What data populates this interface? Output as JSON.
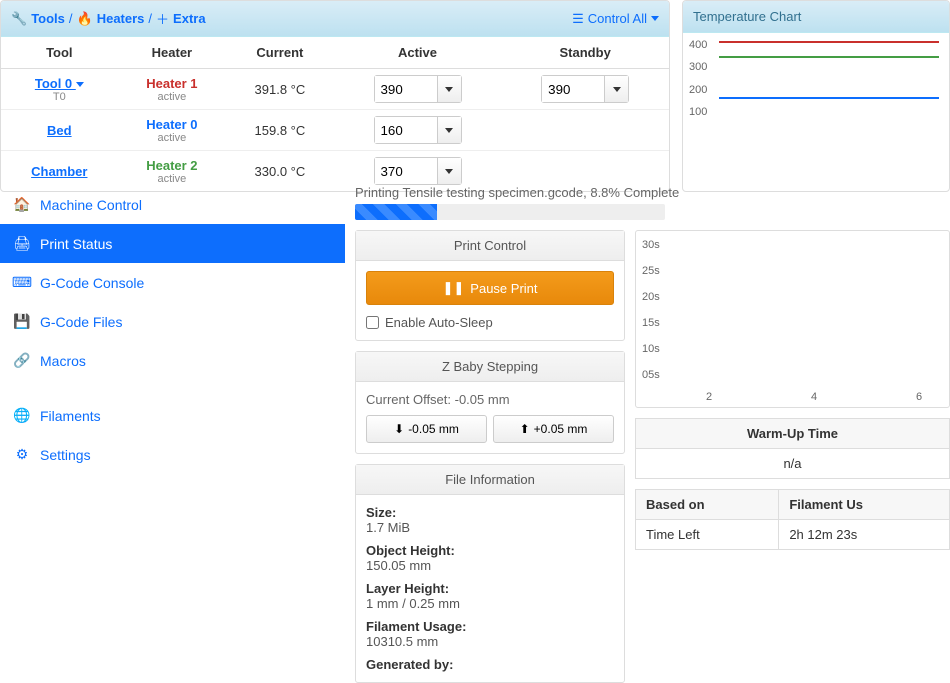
{
  "tools": {
    "crumbs": {
      "tools": "Tools",
      "heaters": "Heaters",
      "extra": "Extra"
    },
    "control_all": "Control All",
    "columns": {
      "tool": "Tool",
      "heater": "Heater",
      "current": "Current",
      "active": "Active",
      "standby": "Standby"
    },
    "rows": [
      {
        "tool": "Tool 0",
        "tool_sub": "T0",
        "heater": "Heater 1",
        "heater_class": "h-red",
        "status": "active",
        "current": "391.8 °C",
        "active": "390",
        "standby": "390"
      },
      {
        "tool": "Bed",
        "tool_sub": "",
        "heater": "Heater 0",
        "heater_class": "h-blue",
        "status": "active",
        "current": "159.8 °C",
        "active": "160",
        "standby": ""
      },
      {
        "tool": "Chamber",
        "tool_sub": "",
        "heater": "Heater 2",
        "heater_class": "h-green",
        "status": "active",
        "current": "330.0 °C",
        "active": "370",
        "standby": ""
      }
    ]
  },
  "temp_chart": {
    "title": "Temperature Chart",
    "y_ticks": [
      "400",
      "300",
      "200",
      "100"
    ],
    "lines": [
      {
        "color": "#c9302c",
        "y": 390
      },
      {
        "color": "#449d44",
        "y": 330
      },
      {
        "color": "#0d6efd",
        "y": 160
      }
    ],
    "y_max": 400
  },
  "sidebar": {
    "items": [
      {
        "icon": "home",
        "label": "Machine Control"
      },
      {
        "icon": "print",
        "label": "Print Status"
      },
      {
        "icon": "console",
        "label": "G-Code Console"
      },
      {
        "icon": "drive",
        "label": "G-Code Files"
      },
      {
        "icon": "link",
        "label": "Macros"
      },
      {
        "icon": "globe",
        "label": "Filaments"
      },
      {
        "icon": "gear",
        "label": "Settings"
      }
    ],
    "active_index": 1
  },
  "progress": {
    "label": "Printing Tensile testing specimen.gcode, 8.8% Complete",
    "percent": 8.8
  },
  "print_control": {
    "title": "Print Control",
    "pause": "Pause Print",
    "auto_sleep": "Enable Auto-Sleep"
  },
  "baby": {
    "title": "Z Baby Stepping",
    "offset_label": "Current Offset: -0.05 mm",
    "down": "-0.05 mm",
    "up": "+0.05 mm"
  },
  "file_info": {
    "title": "File Information",
    "rows": [
      {
        "k": "Size:",
        "v": "1.7 MiB"
      },
      {
        "k": "Object Height:",
        "v": "150.05 mm"
      },
      {
        "k": "Layer Height:",
        "v": "1 mm / 0.25 mm"
      },
      {
        "k": "Filament Usage:",
        "v": "10310.5 mm"
      },
      {
        "k": "Generated by:",
        "v": ""
      }
    ]
  },
  "speed_chart": {
    "y_ticks": [
      "30s",
      "25s",
      "20s",
      "15s",
      "10s",
      "05s"
    ],
    "x_ticks": [
      "2",
      "4",
      "6"
    ]
  },
  "warmup": {
    "header": "Warm-Up Time",
    "value": "n/a"
  },
  "estimate": {
    "based_on": "Based on",
    "filament": "Filament Us",
    "time_left": "Time Left",
    "time_value": "2h 12m 23s"
  }
}
